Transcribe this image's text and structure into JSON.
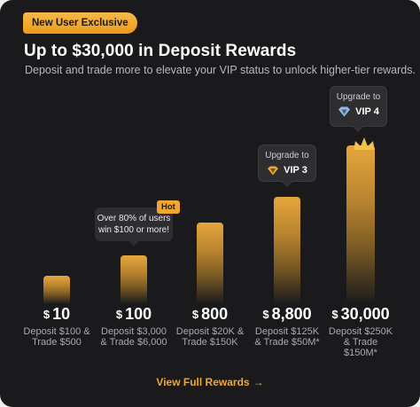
{
  "badge": "New User Exclusive",
  "title": "Up to $30,000 in Deposit Rewards",
  "subtitle": "Deposit and trade more to elevate your VIP status to unlock higher-tier rewards.",
  "tiers": [
    {
      "currency": "$",
      "amount": "10",
      "desc1": "Deposit $100 &",
      "desc2": "Trade $500",
      "desc3": ""
    },
    {
      "currency": "$",
      "amount": "100",
      "desc1": "Deposit $3,000",
      "desc2": "& Trade $6,000",
      "desc3": ""
    },
    {
      "currency": "$",
      "amount": "800",
      "desc1": "Deposit $20K &",
      "desc2": "Trade $150K",
      "desc3": ""
    },
    {
      "currency": "$",
      "amount": "8,800",
      "desc1": "Deposit $125K",
      "desc2": "& Trade $50M*",
      "desc3": ""
    },
    {
      "currency": "$",
      "amount": "30,000",
      "desc1": "Deposit $250K",
      "desc2": "& Trade",
      "desc3": "$150M*"
    }
  ],
  "hot_badge": "Hot",
  "hot_tip": {
    "line1": "Over 80% of users",
    "line2": "win $100 or more!"
  },
  "vip3": {
    "label": "Upgrade to",
    "level": "VIP 3"
  },
  "vip4": {
    "label": "Upgrade to",
    "level": "VIP 4"
  },
  "link": {
    "label": "View Full Rewards",
    "arrow": "→"
  },
  "colors": {
    "accent": "#f0a732",
    "background": "#1a1a1c",
    "tooltip": "#2e2e31"
  },
  "icons": [
    "diamond-icon",
    "crown-icon",
    "arrow-right-icon"
  ]
}
